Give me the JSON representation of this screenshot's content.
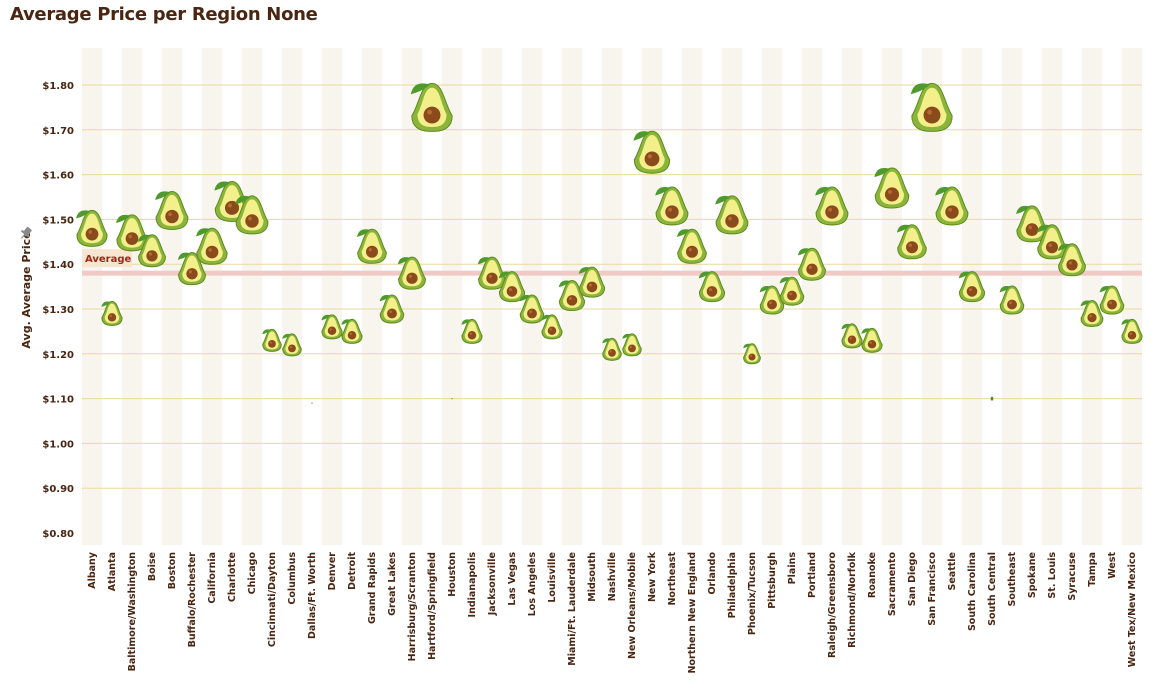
{
  "page": {
    "title": "Average Price per Region None"
  },
  "colors": {
    "text": "#4a2511",
    "gridline": "#e8d9a0",
    "column_band": "#f7f5ee",
    "average_band": "#f2c9c4",
    "average_label_bg": "#f7e6cf",
    "average_label_text": "#a0251a",
    "avocado_skin": "#8bb53a",
    "avocado_skin_dark": "#5e8a1f",
    "avocado_flesh": "#f3ef8a",
    "avocado_pit": "#8a4a1c",
    "leaf": "#4f9a2c"
  },
  "chart_data": {
    "type": "scatter",
    "title": "Average Price per Region None",
    "ylabel": "Avg. Average Price",
    "xlabel": "",
    "ylim": [
      0.8,
      1.85
    ],
    "y_ticks": [
      "$0.80",
      "$0.90",
      "$1.00",
      "$1.10",
      "$1.20",
      "$1.30",
      "$1.40",
      "$1.50",
      "$1.60",
      "$1.70",
      "$1.80"
    ],
    "y_tick_values": [
      0.8,
      0.9,
      1.0,
      1.1,
      1.2,
      1.3,
      1.4,
      1.5,
      1.6,
      1.7,
      1.8
    ],
    "grid": true,
    "marker": "avocado",
    "reference_line": {
      "label": "Average",
      "value": 1.38
    },
    "categories": [
      "Albany",
      "Atlanta",
      "Baltimore/Washington",
      "Boise",
      "Boston",
      "Buffalo/Rochester",
      "California",
      "Charlotte",
      "Chicago",
      "Cincinnati/Dayton",
      "Columbus",
      "Dallas/Ft. Worth",
      "Denver",
      "Detroit",
      "Grand Rapids",
      "Great Lakes",
      "Harrisburg/Scranton",
      "Hartford/Springfield",
      "Houston",
      "Indianapolis",
      "Jacksonville",
      "Las Vegas",
      "Los Angeles",
      "Louisville",
      "Miami/Ft. Lauderdale",
      "Midsouth",
      "Nashville",
      "New Orleans/Mobile",
      "New York",
      "Northeast",
      "Northern New England",
      "Orlando",
      "Philadelphia",
      "Phoenix/Tucson",
      "Pittsburgh",
      "Plains",
      "Portland",
      "Raleigh/Greensboro",
      "Richmond/Norfolk",
      "Roanoke",
      "Sacramento",
      "San Diego",
      "San Francisco",
      "Seattle",
      "South Carolina",
      "South Central",
      "Southeast",
      "Spokane",
      "St. Louis",
      "Syracuse",
      "Tampa",
      "West",
      "West Tex/New Mexico"
    ],
    "values": [
      1.48,
      1.29,
      1.47,
      1.43,
      1.52,
      1.39,
      1.44,
      1.54,
      1.51,
      1.23,
      1.22,
      1.09,
      1.26,
      1.25,
      1.44,
      1.3,
      1.38,
      1.75,
      1.1,
      1.25,
      1.38,
      1.35,
      1.3,
      1.26,
      1.33,
      1.36,
      1.21,
      1.22,
      1.65,
      1.53,
      1.44,
      1.35,
      1.51,
      1.2,
      1.32,
      1.34,
      1.4,
      1.53,
      1.24,
      1.23,
      1.57,
      1.45,
      1.75,
      1.53,
      1.35,
      1.1,
      1.32,
      1.49,
      1.45,
      1.41,
      1.29,
      1.32,
      1.25
    ],
    "sizes": [
      36,
      24,
      36,
      32,
      38,
      32,
      36,
      40,
      38,
      22,
      22,
      1,
      24,
      24,
      34,
      28,
      32,
      48,
      1,
      24,
      32,
      30,
      28,
      24,
      30,
      30,
      22,
      22,
      42,
      38,
      34,
      30,
      38,
      20,
      28,
      28,
      32,
      38,
      24,
      24,
      40,
      34,
      48,
      38,
      30,
      4,
      28,
      36,
      34,
      32,
      26,
      28,
      24
    ]
  }
}
